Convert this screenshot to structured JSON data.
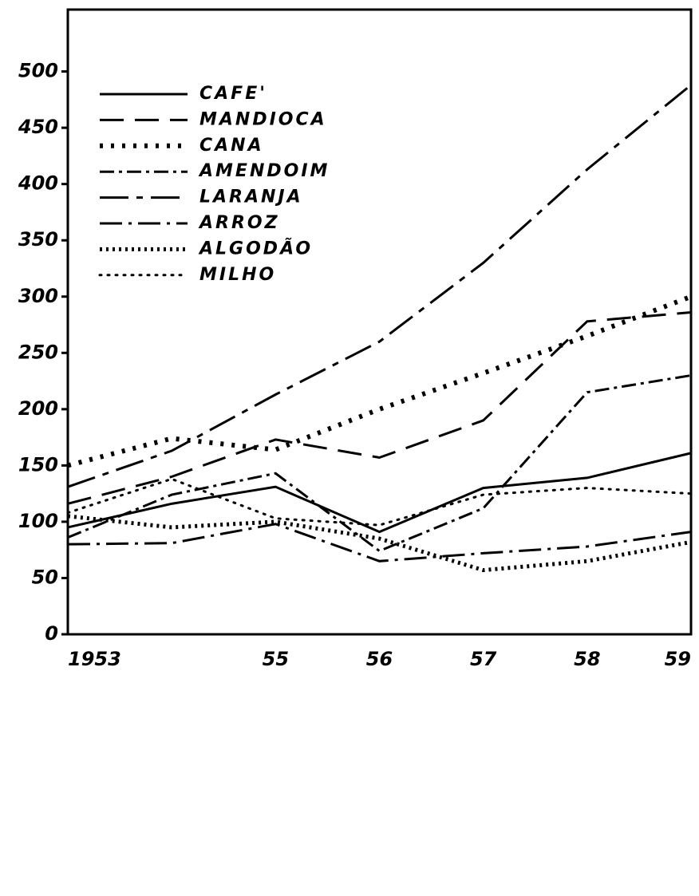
{
  "chart_data": {
    "type": "line",
    "categories": [
      "1953",
      null,
      "55",
      "56",
      "57",
      "58",
      "59"
    ],
    "ylim": [
      0,
      555
    ],
    "yticks": [
      0,
      50,
      100,
      150,
      200,
      250,
      300,
      350,
      400,
      450,
      500
    ],
    "series": [
      {
        "name": "CAFE'",
        "color": "#000",
        "style": "solid",
        "values": [
          95,
          116,
          131,
          91,
          130,
          139,
          161
        ]
      },
      {
        "name": "MANDIOCA",
        "color": "#000",
        "style": "dashed",
        "values": [
          116,
          140,
          173,
          157,
          190,
          278,
          286
        ]
      },
      {
        "name": "CANA",
        "color": "#000",
        "style": "plus",
        "values": [
          150,
          174,
          164,
          200,
          232,
          265,
          300
        ]
      },
      {
        "name": "AMENDOIM",
        "color": "#000",
        "style": "plus-dash",
        "values": [
          86,
          124,
          143,
          74,
          112,
          215,
          230
        ]
      },
      {
        "name": "LARANJA",
        "color": "#000",
        "style": "dash-dot-big",
        "values": [
          131,
          163,
          213,
          260,
          330,
          413,
          488
        ]
      },
      {
        "name": "ARROZ",
        "color": "#000",
        "style": "dash-dot",
        "values": [
          80,
          81,
          98,
          65,
          72,
          78,
          91
        ]
      },
      {
        "name": "ALGODÃO",
        "color": "#000",
        "style": "chevron",
        "values": [
          105,
          95,
          100,
          85,
          57,
          65,
          82
        ]
      },
      {
        "name": "MILHO",
        "color": "#000",
        "style": "dotted",
        "values": [
          108,
          138,
          103,
          97,
          124,
          130,
          125
        ]
      }
    ]
  }
}
